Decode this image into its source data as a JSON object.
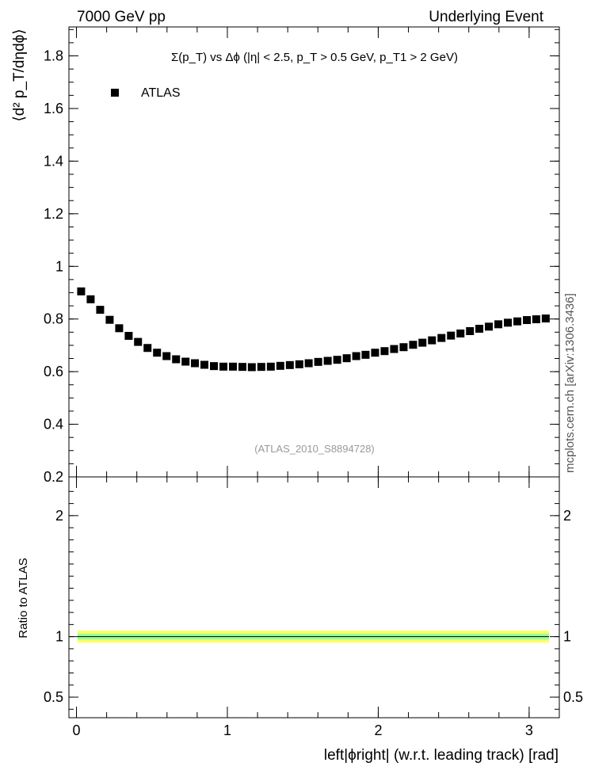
{
  "header": {
    "left": "7000 GeV pp",
    "right": "Underlying Event"
  },
  "side_label": "mcplots.cern.ch [arXiv:1306.3436]",
  "chart_data": [
    {
      "type": "scatter",
      "title": "Σ(p_T) vs Δϕ (|η| < 2.5, p_T > 0.5 GeV, p_T1 > 2 GeV)",
      "ylabel": "⟨d² p_T/dηdϕ⟩",
      "watermark": "(ATLAS_2010_S8894728)",
      "xlim": [
        -0.05,
        3.2
      ],
      "ylim": [
        0.2,
        1.91
      ],
      "yticks": [
        0.2,
        0.4,
        0.6,
        0.8,
        1,
        1.2,
        1.4,
        1.6,
        1.8
      ],
      "ytick_labels": [
        "0.2",
        "0.4",
        "0.6",
        "0.8",
        "1",
        "1.2",
        "1.4",
        "1.6",
        "1.8"
      ],
      "legend": {
        "position": "top-left",
        "entries": [
          "ATLAS"
        ]
      },
      "marker_color": "#000000",
      "series": [
        {
          "name": "ATLAS",
          "x": [
            0.031,
            0.094,
            0.157,
            0.22,
            0.283,
            0.346,
            0.408,
            0.471,
            0.534,
            0.597,
            0.66,
            0.723,
            0.785,
            0.848,
            0.911,
            0.974,
            1.037,
            1.1,
            1.162,
            1.225,
            1.288,
            1.351,
            1.414,
            1.477,
            1.539,
            1.602,
            1.665,
            1.728,
            1.791,
            1.854,
            1.916,
            1.979,
            2.042,
            2.105,
            2.168,
            2.231,
            2.293,
            2.356,
            2.419,
            2.482,
            2.545,
            2.608,
            2.67,
            2.733,
            2.796,
            2.859,
            2.922,
            2.985,
            3.047,
            3.11
          ],
          "y": [
            0.905,
            0.875,
            0.835,
            0.797,
            0.765,
            0.736,
            0.713,
            0.69,
            0.672,
            0.659,
            0.647,
            0.638,
            0.632,
            0.626,
            0.621,
            0.619,
            0.619,
            0.618,
            0.617,
            0.618,
            0.619,
            0.622,
            0.625,
            0.628,
            0.632,
            0.637,
            0.641,
            0.645,
            0.651,
            0.659,
            0.664,
            0.672,
            0.678,
            0.686,
            0.693,
            0.702,
            0.71,
            0.719,
            0.728,
            0.737,
            0.745,
            0.754,
            0.763,
            0.771,
            0.78,
            0.786,
            0.791,
            0.796,
            0.799,
            0.802
          ]
        }
      ]
    },
    {
      "type": "line",
      "ylabel": "Ratio to ATLAS",
      "xlabel": "left|ϕright| (w.r.t. leading track) [rad]",
      "xlim": [
        -0.05,
        3.2
      ],
      "ylim": [
        0.33,
        2.32
      ],
      "xticks": [
        0,
        1,
        2,
        3
      ],
      "xtick_labels": [
        "0",
        "1",
        "2",
        "3"
      ],
      "yticks": [
        0.5,
        1,
        2
      ],
      "ytick_labels": [
        "0.5",
        "1",
        "2"
      ],
      "reference_line": 1,
      "bands": [
        {
          "name": "outer",
          "low": 0.95,
          "high": 1.05,
          "color": "#ffff66"
        },
        {
          "name": "inner",
          "low": 0.975,
          "high": 1.025,
          "color": "#99ff99"
        }
      ]
    }
  ]
}
